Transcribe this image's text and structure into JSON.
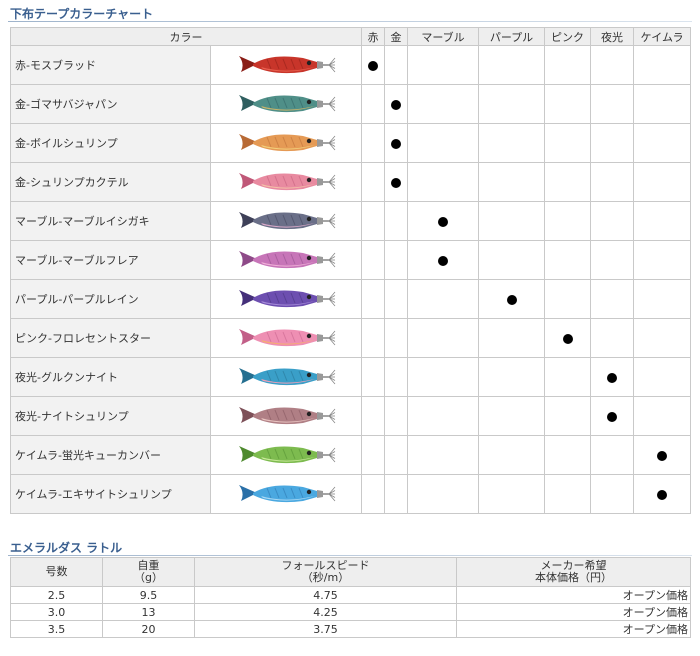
{
  "color_chart": {
    "title": "下布テープカラーチャート",
    "header": {
      "name_col": "カラー",
      "categories": [
        "赤",
        "金",
        "マーブル",
        "パープル",
        "ピンク",
        "夜光",
        "ケイムラ"
      ]
    },
    "rows": [
      {
        "name": "赤-モスブラッド",
        "mark_col": 0,
        "body": "#c8352a",
        "belly": "#e8604f",
        "fin": "#8a1d16"
      },
      {
        "name": "金-ゴマサバジャパン",
        "mark_col": 1,
        "body": "#4f8f88",
        "belly": "#c9b46a",
        "fin": "#2f5f60"
      },
      {
        "name": "金-ボイルシュリンプ",
        "mark_col": 1,
        "body": "#e59a55",
        "belly": "#f2cf7a",
        "fin": "#b86a35"
      },
      {
        "name": "金-シュリンプカクテル",
        "mark_col": 1,
        "body": "#e88aa0",
        "belly": "#f4c0a8",
        "fin": "#c05878"
      },
      {
        "name": "マーブル-マーブルイシガキ",
        "mark_col": 2,
        "body": "#6a6f88",
        "belly": "#d9a9c8",
        "fin": "#3e4058"
      },
      {
        "name": "マーブル-マーブルフレア",
        "mark_col": 2,
        "body": "#c775b8",
        "belly": "#f0b0d8",
        "fin": "#8e4a88"
      },
      {
        "name": "パープル-パープルレイン",
        "mark_col": 3,
        "body": "#6d4fb0",
        "belly": "#a58ad8",
        "fin": "#45307a"
      },
      {
        "name": "ピンク-フロレセントスター",
        "mark_col": 4,
        "body": "#ee8fb3",
        "belly": "#f5b070",
        "fin": "#c25f88"
      },
      {
        "name": "夜光-グルクンナイト",
        "mark_col": 5,
        "body": "#3a9fc8",
        "belly": "#f0a0b8",
        "fin": "#256f90"
      },
      {
        "name": "夜光-ナイトシュリンプ",
        "mark_col": 5,
        "body": "#b07f85",
        "belly": "#e8c3c0",
        "fin": "#7d5058"
      },
      {
        "name": "ケイムラ-蛍光キューカンバー",
        "mark_col": 6,
        "body": "#7dbb4f",
        "belly": "#c8e89a",
        "fin": "#4e8a2e"
      },
      {
        "name": "ケイムラ-エキサイトシュリンプ",
        "mark_col": 6,
        "body": "#4aa8e0",
        "belly": "#a8d8f4",
        "fin": "#2a70a8"
      }
    ]
  },
  "spec": {
    "title": "エメラルダス ラトル",
    "headers": {
      "size": "号数",
      "weight_line1": "自重",
      "weight_line2": "（g）",
      "speed_line1": "フォールスピード",
      "speed_line2": "（秒/m）",
      "price_line1": "メーカー希望",
      "price_line2": "本体価格（円）"
    },
    "rows": [
      {
        "size": "2.5",
        "weight": "9.5",
        "speed": "4.75",
        "price": "オープン価格"
      },
      {
        "size": "3.0",
        "weight": "13",
        "speed": "4.25",
        "price": "オープン価格"
      },
      {
        "size": "3.5",
        "weight": "20",
        "speed": "3.75",
        "price": "オープン価格"
      }
    ]
  }
}
